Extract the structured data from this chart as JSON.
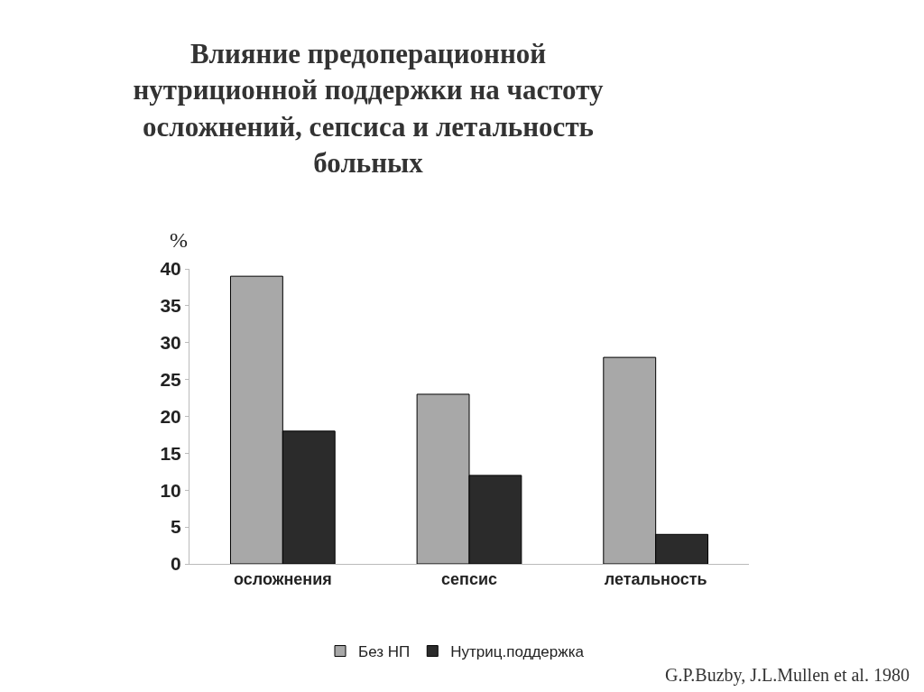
{
  "chart_data": {
    "type": "bar",
    "title": "Влияние предоперационной\nнутриционной поддержки на частоту\nосложнений, сепсиса и летальность\nбольных",
    "ylabel": "%",
    "categories": [
      "осложнения",
      "сепсис",
      "летальность"
    ],
    "series": [
      {
        "name": "Без НП",
        "color": "#a8a8a8",
        "values": [
          39,
          23,
          28
        ]
      },
      {
        "name": "Нутриц.поддержка",
        "color": "#2b2b2b",
        "values": [
          18,
          12,
          4
        ]
      }
    ],
    "ylim": [
      0,
      40
    ],
    "yticks": [
      0,
      5,
      10,
      15,
      20,
      25,
      30,
      35,
      40
    ],
    "legend": "bottom",
    "annotations": [
      "G.P.Buzby, J.L.Mullen et al. 1980"
    ]
  }
}
